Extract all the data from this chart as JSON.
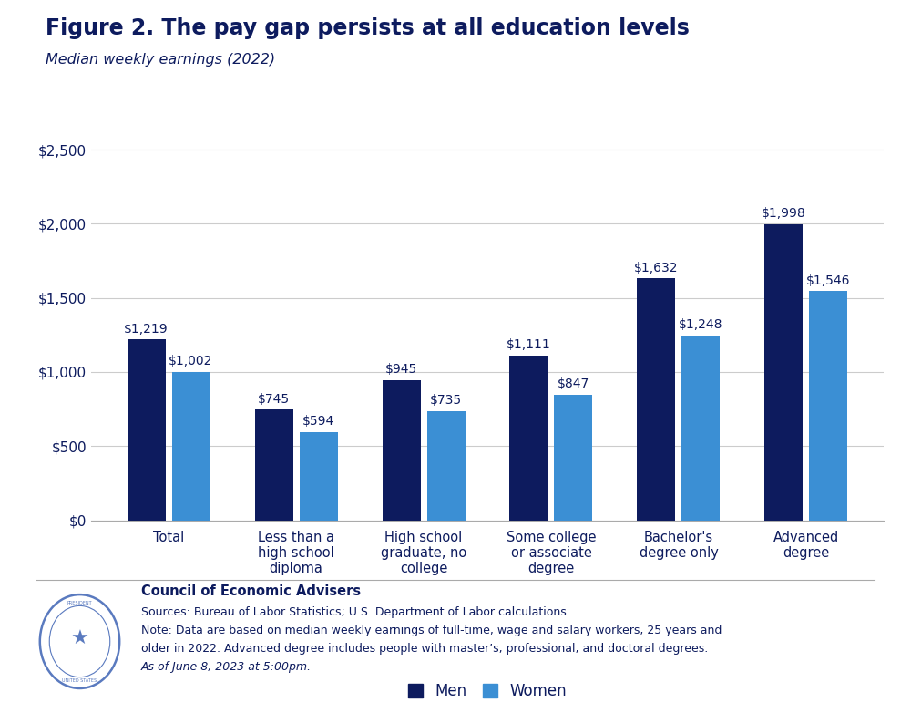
{
  "title": "Figure 2. The pay gap persists at all education levels",
  "subtitle": "Median weekly earnings (2022)",
  "categories": [
    "Total",
    "Less than a\nhigh school\ndiploma",
    "High school\ngraduate, no\ncollege",
    "Some college\nor associate\ndegree",
    "Bachelor's\ndegree only",
    "Advanced\ndegree"
  ],
  "men_values": [
    1219,
    745,
    945,
    1111,
    1632,
    1998
  ],
  "women_values": [
    1002,
    594,
    735,
    847,
    1248,
    1546
  ],
  "men_labels": [
    "$1,219",
    "$745",
    "$945",
    "$1,111",
    "$1,632",
    "$1,998"
  ],
  "women_labels": [
    "$1,002",
    "$594",
    "$735",
    "$847",
    "$1,248",
    "$1,546"
  ],
  "men_color": "#0d1b5e",
  "women_color": "#3b8fd4",
  "title_color": "#0d1b5e",
  "subtitle_color": "#0d1b5e",
  "axis_color": "#0d1b5e",
  "yticks": [
    0,
    500,
    1000,
    1500,
    2000,
    2500
  ],
  "ytick_labels": [
    "$0",
    "$500",
    "$1,000",
    "$1,500",
    "$2,000",
    "$2,500"
  ],
  "ylim": [
    0,
    2750
  ],
  "legend_men": "Men",
  "legend_women": "Women",
  "source_bold": "Council of Economic Advisers",
  "source_line1": "Sources: Bureau of Labor Statistics; U.S. Department of Labor calculations.",
  "source_line2": "Note: Data are based on median weekly earnings of full-time, wage and salary workers, 25 years and",
  "source_line3": "older in 2022. Advanced degree includes people with master’s, professional, and doctoral degrees.",
  "source_line4": "As of June 8, 2023 at 5:00pm.",
  "background_color": "#ffffff",
  "grid_color": "#cccccc",
  "spine_color": "#aaaaaa"
}
